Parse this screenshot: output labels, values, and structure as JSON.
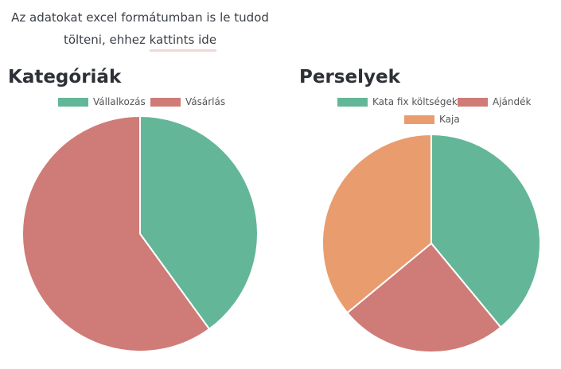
{
  "intro": {
    "line1": "Az adatokat excel formátumban is le tudod",
    "line2_prefix": "tölteni, ehhez ",
    "link_label": "kattints ide"
  },
  "charts": {
    "categories_title": "Kategóriák",
    "boxes_title": "Perselyek"
  },
  "colors": {
    "green": "#64b699",
    "red": "#cf7b77",
    "orange": "#e99d6e"
  },
  "chart_data": [
    {
      "type": "pie",
      "title": "Kategóriák",
      "legend_position": "top",
      "labels": [
        "Vállalkozás",
        "Vásárlás"
      ],
      "values": [
        40,
        60
      ],
      "colors": [
        "#64b699",
        "#cf7b77"
      ]
    },
    {
      "type": "pie",
      "title": "Perselyek",
      "legend_position": "top",
      "labels": [
        "Kata fix költségek",
        "Ajándék",
        "Kaja"
      ],
      "values": [
        39,
        25,
        36
      ],
      "colors": [
        "#64b699",
        "#cf7b77",
        "#e99d6e"
      ]
    }
  ]
}
